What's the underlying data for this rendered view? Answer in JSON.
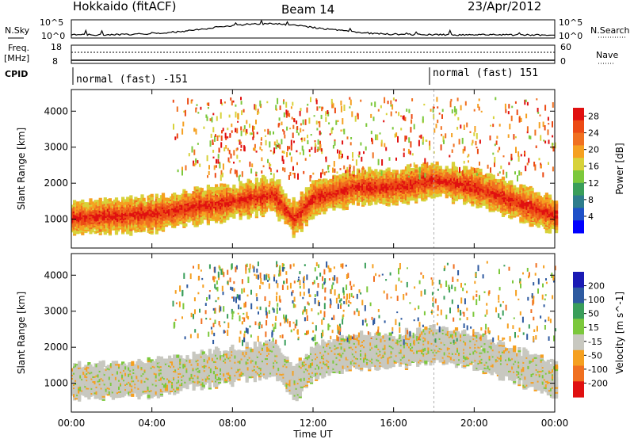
{
  "header": {
    "station": "Hokkaido (fitACF)",
    "beam": "Beam 14",
    "date": "23/Apr/2012"
  },
  "strip_labels": {
    "nsky": "N.Sky",
    "nsearch": "N.Search",
    "freq": "Freq.",
    "freq_unit": "[MHz]",
    "nave": "Nave",
    "cpid": "CPID",
    "nsky_ticks": [
      "10^5",
      "10^0"
    ],
    "nsearch_ticks": [
      "10^5",
      "10^0"
    ],
    "freq_ticks": [
      "18",
      "8"
    ],
    "nave_ticks": [
      "60",
      "0"
    ]
  },
  "cpid_segments": [
    {
      "label": "normal (fast) -151",
      "start_hour": 0,
      "end_hour": 18
    },
    {
      "label": "normal (fast) 151",
      "start_hour": 18,
      "end_hour": 24
    }
  ],
  "chart_data": [
    {
      "type": "heatmap",
      "title": "",
      "ylabel": "Slant Range [km]",
      "xlabel": "",
      "xlim": [
        0,
        24
      ],
      "ylim": [
        200,
        4600
      ],
      "yticks": [
        "1000",
        "2000",
        "3000",
        "4000"
      ],
      "colorbar": {
        "label": "Power [dB]",
        "ticks": [
          "4",
          "8",
          "12",
          "16",
          "20",
          "24",
          "28"
        ],
        "range": [
          0,
          30
        ],
        "colors": [
          "#0000ff",
          "#1e50c8",
          "#2e7d8c",
          "#3a9e5a",
          "#7cc83c",
          "#d7d23a",
          "#f5a020",
          "#f07020",
          "#ec4a14",
          "#e01010"
        ]
      },
      "bands": [
        {
          "name": "main echo band",
          "x": [
            0,
            2,
            4,
            6,
            8,
            10,
            11,
            12,
            14,
            16,
            18,
            20,
            22,
            24
          ],
          "y_center": [
            1050,
            1100,
            1150,
            1350,
            1500,
            1700,
            1000,
            1600,
            1900,
            1900,
            2100,
            1900,
            1500,
            1100
          ],
          "power_db": 26
        }
      ]
    },
    {
      "type": "heatmap",
      "title": "",
      "ylabel": "Slant Range [km]",
      "xlabel": "Time UT",
      "xlim": [
        0,
        24
      ],
      "ylim": [
        200,
        4600
      ],
      "xticks": [
        "00:00",
        "04:00",
        "08:00",
        "12:00",
        "16:00",
        "20:00",
        "00:00"
      ],
      "yticks": [
        "1000",
        "2000",
        "3000",
        "4000"
      ],
      "colorbar": {
        "label": "Velocity [m s^-1]",
        "ticks": [
          "200",
          "100",
          "50",
          "15",
          "-15",
          "-50",
          "-100",
          "-200"
        ],
        "range": [
          -250,
          250
        ],
        "colors": [
          "#e01010",
          "#f07020",
          "#f5a020",
          "#c8c8c0",
          "#7cc83c",
          "#3a9e5a",
          "#2e5aa0",
          "#1a1ab4"
        ]
      },
      "bands": [
        {
          "name": "ground scatter band",
          "x": [
            0,
            2,
            4,
            6,
            8,
            10,
            11,
            12,
            14,
            16,
            18,
            20,
            22,
            24
          ],
          "y_center": [
            1050,
            1100,
            1150,
            1350,
            1500,
            1700,
            1000,
            1600,
            1900,
            1900,
            2100,
            1900,
            1500,
            1100
          ],
          "velocity": 0
        }
      ]
    }
  ]
}
